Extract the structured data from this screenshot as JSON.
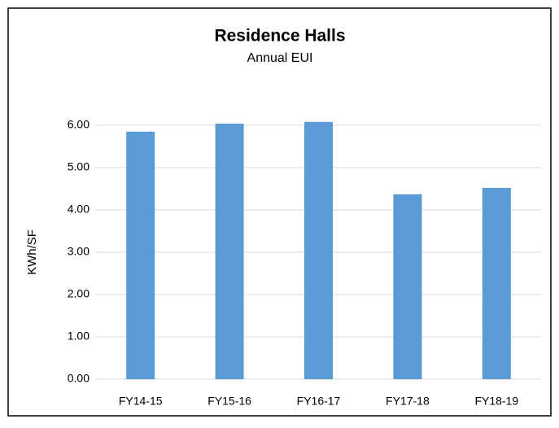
{
  "chart_data": {
    "type": "bar",
    "title": "Residence Halls",
    "subtitle": "Annual EUI",
    "y_label": "KWh/SF",
    "categories": [
      "FY14-15",
      "FY15-16",
      "FY16-17",
      "FY17-18",
      "FY18-19"
    ],
    "values": [
      5.85,
      6.04,
      6.08,
      4.37,
      4.52
    ],
    "color": "#5b9bd5",
    "ylim": [
      0,
      6
    ],
    "yticks": [
      {
        "value": 0,
        "label": "0.00"
      },
      {
        "value": 1,
        "label": "1.00"
      },
      {
        "value": 2,
        "label": "2.00"
      },
      {
        "value": 3,
        "label": "3.00"
      },
      {
        "value": 4,
        "label": "4.00"
      },
      {
        "value": 5,
        "label": "5.00"
      },
      {
        "value": 6,
        "label": "6.00"
      }
    ],
    "grid": true
  }
}
